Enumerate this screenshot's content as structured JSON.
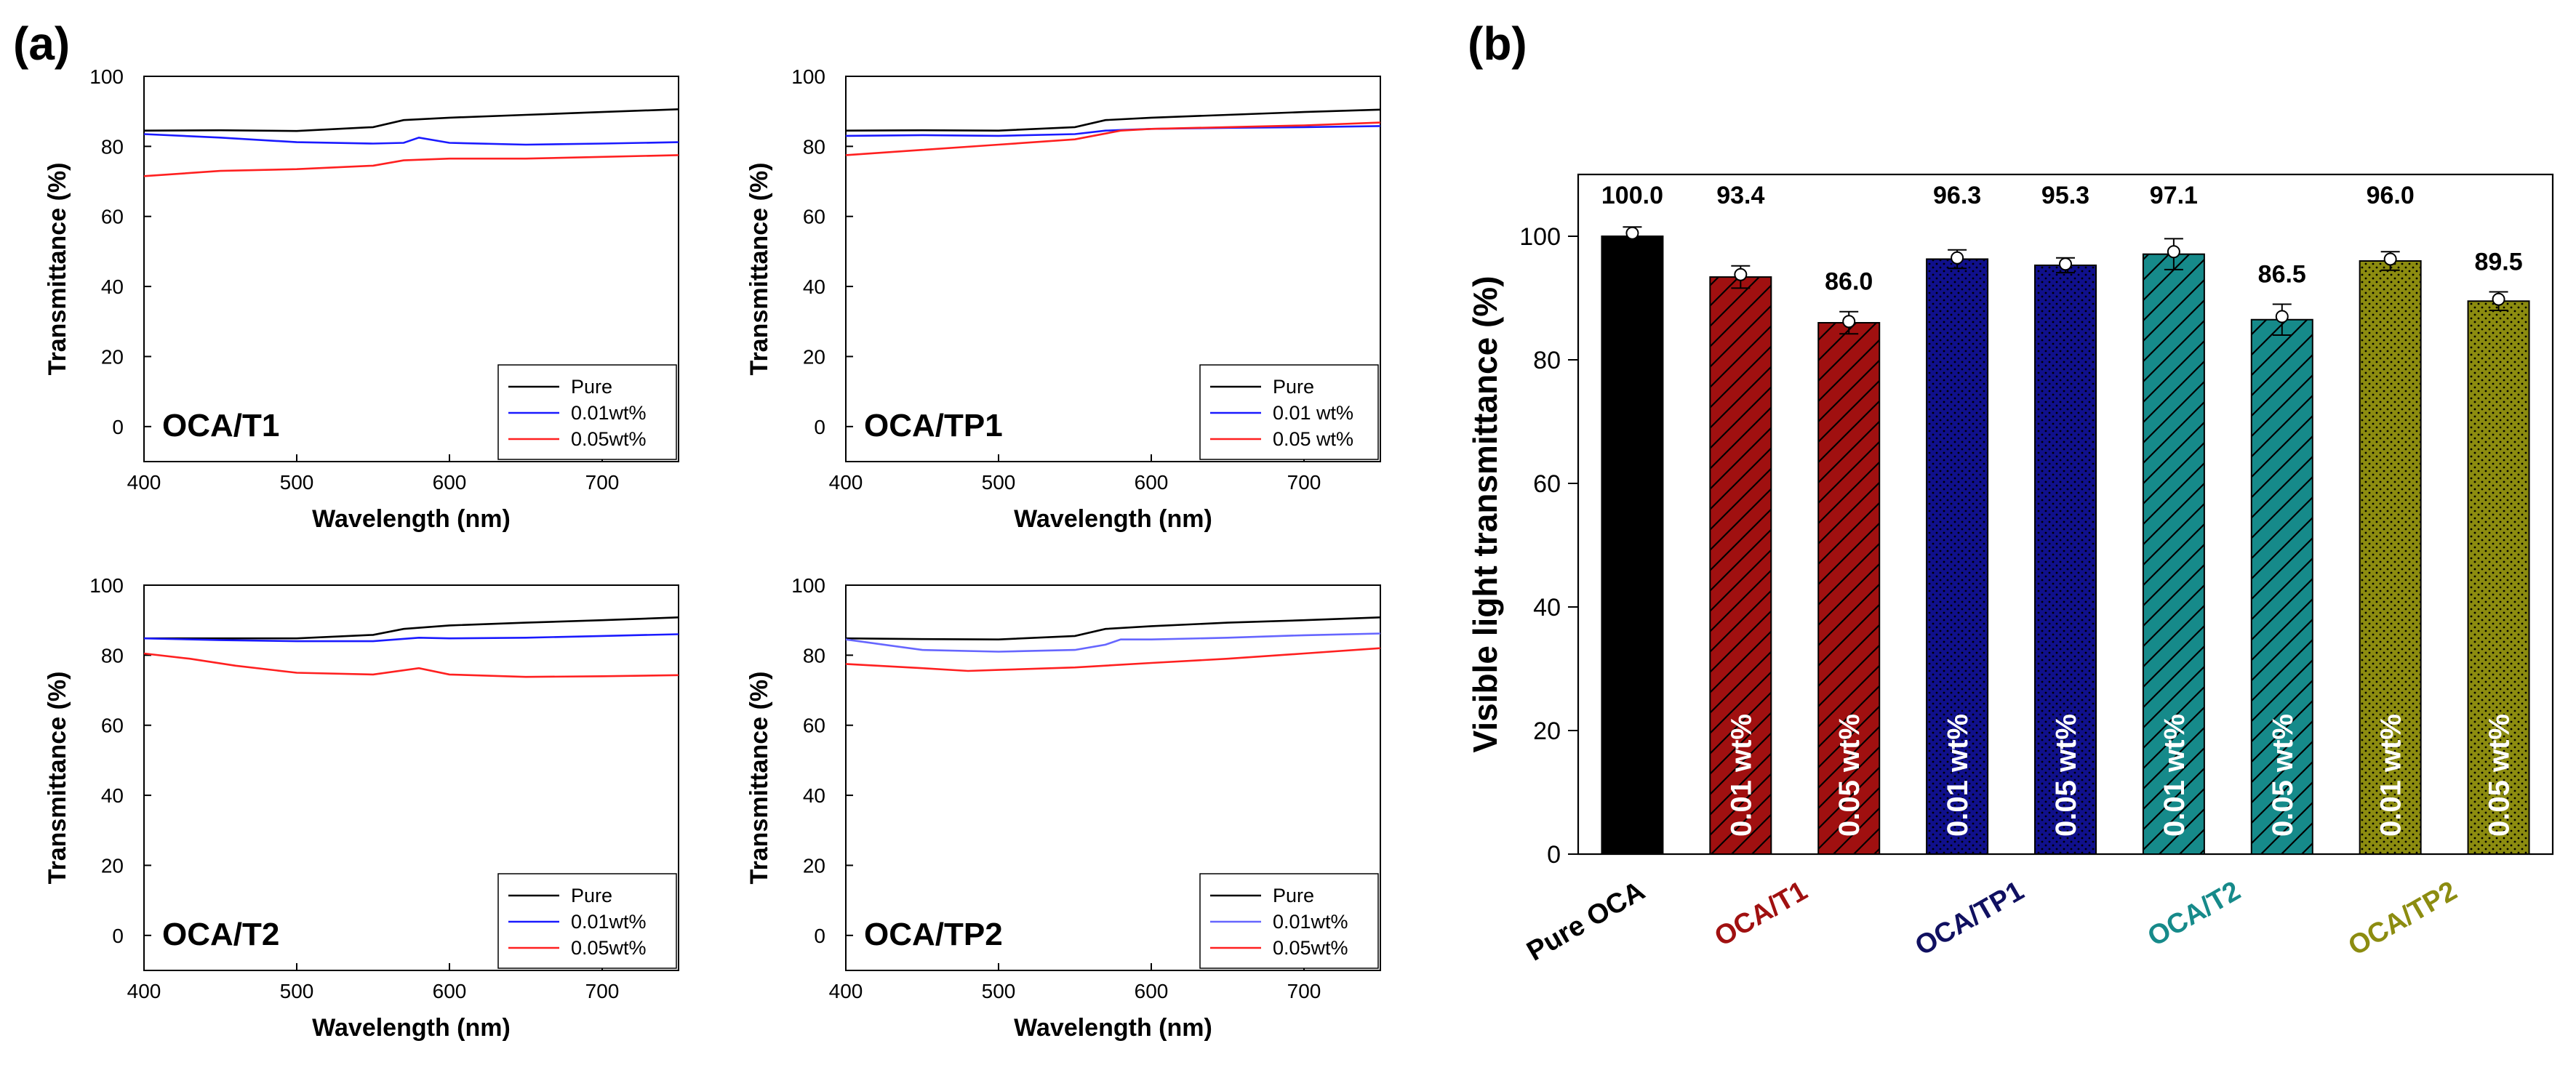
{
  "panel_a_label": "(a)",
  "panel_b_label": "(b)",
  "chart_data": [
    {
      "type": "line",
      "tag": "OCA/T1",
      "xlabel": "Wavelength (nm)",
      "ylabel": "Transmittance (%)",
      "xlim": [
        400,
        750
      ],
      "ylim": [
        -10,
        100
      ],
      "xticks": [
        400,
        500,
        600,
        700
      ],
      "yticks": [
        0,
        20,
        40,
        60,
        80,
        100
      ],
      "legend_position": "bottom-right",
      "series": [
        {
          "name": "Pure",
          "color": "#000000",
          "x": [
            400,
            450,
            500,
            550,
            570,
            600,
            650,
            700,
            750
          ],
          "y": [
            84.5,
            84.6,
            84.4,
            85.5,
            87.5,
            88.2,
            89,
            89.8,
            90.6
          ]
        },
        {
          "name": "0.01wt%",
          "color": "#1a1aff",
          "x": [
            400,
            450,
            500,
            550,
            570,
            580,
            600,
            650,
            700,
            750
          ],
          "y": [
            83.5,
            82.5,
            81.2,
            80.8,
            81,
            82.5,
            81,
            80.5,
            80.8,
            81.2
          ]
        },
        {
          "name": "0.05wt%",
          "color": "#ff2020",
          "x": [
            400,
            450,
            500,
            550,
            570,
            600,
            650,
            700,
            750
          ],
          "y": [
            71.5,
            73,
            73.5,
            74.5,
            76,
            76.5,
            76.5,
            77,
            77.5
          ]
        }
      ]
    },
    {
      "type": "line",
      "tag": "OCA/TP1",
      "xlabel": "Wavelength (nm)",
      "ylabel": "Transmittance (%)",
      "xlim": [
        400,
        750
      ],
      "ylim": [
        -10,
        100
      ],
      "xticks": [
        400,
        500,
        600,
        700
      ],
      "yticks": [
        0,
        20,
        40,
        60,
        80,
        100
      ],
      "legend_position": "bottom-right",
      "series": [
        {
          "name": "Pure",
          "color": "#000000",
          "x": [
            400,
            450,
            500,
            550,
            570,
            600,
            650,
            700,
            750
          ],
          "y": [
            84.5,
            84.6,
            84.5,
            85.5,
            87.5,
            88.2,
            89,
            89.8,
            90.5
          ]
        },
        {
          "name": "0.01 wt%",
          "color": "#1a1aff",
          "x": [
            400,
            450,
            500,
            550,
            570,
            600,
            650,
            700,
            750
          ],
          "y": [
            83,
            83.2,
            83,
            83.5,
            84.5,
            85,
            85.3,
            85.5,
            85.8
          ]
        },
        {
          "name": "0.05 wt%",
          "color": "#ff2020",
          "x": [
            400,
            450,
            500,
            550,
            580,
            600,
            650,
            700,
            750
          ],
          "y": [
            77.5,
            79,
            80.5,
            82,
            84.5,
            85,
            85.5,
            86,
            86.8
          ]
        }
      ]
    },
    {
      "type": "line",
      "tag": "OCA/T2",
      "xlabel": "Wavelength (nm)",
      "ylabel": "Transmittance (%)",
      "xlim": [
        400,
        750
      ],
      "ylim": [
        -10,
        100
      ],
      "xticks": [
        400,
        500,
        600,
        700
      ],
      "yticks": [
        0,
        20,
        40,
        60,
        80,
        100
      ],
      "legend_position": "bottom-right",
      "series": [
        {
          "name": "Pure",
          "color": "#000000",
          "x": [
            400,
            450,
            500,
            550,
            570,
            600,
            650,
            700,
            750
          ],
          "y": [
            84.8,
            84.8,
            84.8,
            85.8,
            87.5,
            88.5,
            89.3,
            90,
            90.8
          ]
        },
        {
          "name": "0.01wt%",
          "color": "#1a1aff",
          "x": [
            400,
            450,
            500,
            550,
            580,
            600,
            650,
            700,
            750
          ],
          "y": [
            84.8,
            84.3,
            84,
            84,
            85,
            84.8,
            85,
            85.5,
            86
          ]
        },
        {
          "name": "0.05wt%",
          "color": "#ff2020",
          "x": [
            400,
            430,
            460,
            500,
            550,
            580,
            600,
            650,
            700,
            750
          ],
          "y": [
            80.5,
            79,
            77,
            75,
            74.5,
            76.3,
            74.5,
            73.8,
            74,
            74.3
          ]
        }
      ]
    },
    {
      "type": "line",
      "tag": "OCA/TP2",
      "xlabel": "Wavelength (nm)",
      "ylabel": "Transmittance (%)",
      "xlim": [
        400,
        750
      ],
      "ylim": [
        -10,
        100
      ],
      "xticks": [
        400,
        500,
        600,
        700
      ],
      "yticks": [
        0,
        20,
        40,
        60,
        80,
        100
      ],
      "legend_position": "bottom-right",
      "series": [
        {
          "name": "Pure",
          "color": "#000000",
          "x": [
            400,
            450,
            500,
            550,
            570,
            600,
            650,
            700,
            750
          ],
          "y": [
            84.8,
            84.6,
            84.5,
            85.5,
            87.5,
            88.3,
            89.3,
            90,
            90.8
          ]
        },
        {
          "name": "0.01wt%",
          "color": "#6666ff",
          "x": [
            400,
            450,
            500,
            550,
            570,
            580,
            600,
            650,
            700,
            750
          ],
          "y": [
            84.5,
            81.5,
            81,
            81.5,
            83,
            84.5,
            84.5,
            85,
            85.7,
            86.2
          ]
        },
        {
          "name": "0.05wt%",
          "color": "#ff2020",
          "x": [
            400,
            450,
            480,
            500,
            550,
            600,
            650,
            700,
            750
          ],
          "y": [
            77.5,
            76.3,
            75.5,
            75.8,
            76.5,
            77.8,
            79,
            80.5,
            82
          ]
        }
      ]
    },
    {
      "type": "bar",
      "ylabel": "Visible light transmittance (%)",
      "ylim": [
        0,
        110
      ],
      "yticks": [
        0,
        20,
        40,
        60,
        80,
        100
      ],
      "bars": [
        {
          "value": 100.0,
          "label": "100.0",
          "err": 1.5,
          "dot": 100.5,
          "color": "#000000",
          "pattern": "solid",
          "inside": ""
        },
        {
          "value": 93.4,
          "label": "93.4",
          "err": 1.8,
          "dot": 93.8,
          "color": "#a01010",
          "pattern": "hatch",
          "inside": "0.01 wt%"
        },
        {
          "value": 86.0,
          "label": "86.0",
          "err": 1.8,
          "dot": 86.2,
          "color": "#a01010",
          "pattern": "hatch",
          "inside": "0.05 wt%"
        },
        {
          "value": 96.3,
          "label": "96.3",
          "err": 1.5,
          "dot": 96.5,
          "color": "#10108c",
          "pattern": "dots",
          "inside": "0.01 wt%"
        },
        {
          "value": 95.3,
          "label": "95.3",
          "err": 1.2,
          "dot": 95.5,
          "color": "#10108c",
          "pattern": "dots",
          "inside": "0.05 wt%"
        },
        {
          "value": 97.1,
          "label": "97.1",
          "err": 2.5,
          "dot": 97.5,
          "color": "#168a8a",
          "pattern": "hatch",
          "inside": "0.01 wt%"
        },
        {
          "value": 86.5,
          "label": "86.5",
          "err": 2.5,
          "dot": 87,
          "color": "#168a8a",
          "pattern": "hatch",
          "inside": "0.05 wt%"
        },
        {
          "value": 96.0,
          "label": "96.0",
          "err": 1.5,
          "dot": 96.3,
          "color": "#8c8c10",
          "pattern": "dots",
          "inside": "0.01 wt%"
        },
        {
          "value": 89.5,
          "label": "89.5",
          "err": 1.5,
          "dot": 89.8,
          "color": "#8c8c10",
          "pattern": "dots",
          "inside": "0.05 wt%"
        }
      ],
      "groups": [
        {
          "label": "Pure OCA",
          "color": "#000000",
          "bars": [
            0
          ]
        },
        {
          "label": "OCA/T1",
          "color": "#a01010",
          "bars": [
            1,
            2
          ]
        },
        {
          "label": "OCA/TP1",
          "color": "#101060",
          "bars": [
            3,
            4
          ]
        },
        {
          "label": "OCA/T2",
          "color": "#168a8a",
          "bars": [
            5,
            6
          ]
        },
        {
          "label": "OCA/TP2",
          "color": "#8c8c10",
          "bars": [
            7,
            8
          ]
        }
      ]
    }
  ]
}
